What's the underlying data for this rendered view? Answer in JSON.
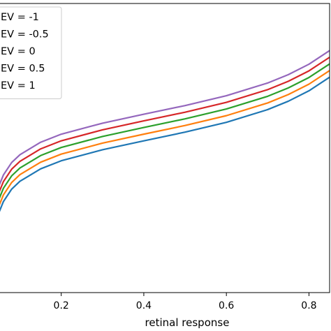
{
  "chart_data": {
    "type": "line",
    "title": "",
    "xlabel": "retinal response",
    "ylabel": "",
    "xlim": [
      0.05,
      0.85
    ],
    "ylim": [
      0,
      1
    ],
    "x_ticks": [
      0.2,
      0.4,
      0.6,
      0.8
    ],
    "x_tick_labels": [
      "0.2",
      "0.4",
      "0.6",
      "0.8"
    ],
    "grid": false,
    "legend_position": "upper-left",
    "x": [
      0.05,
      0.06,
      0.08,
      0.1,
      0.15,
      0.2,
      0.3,
      0.4,
      0.5,
      0.6,
      0.7,
      0.75,
      0.8,
      0.85
    ],
    "series": [
      {
        "name": "EV = -1",
        "color": "#1f77b4",
        "values": [
          0.28,
          0.315,
          0.358,
          0.385,
          0.428,
          0.456,
          0.494,
          0.525,
          0.555,
          0.589,
          0.633,
          0.662,
          0.698,
          0.745
        ]
      },
      {
        "name": "EV = -0.5",
        "color": "#ff7f0e",
        "values": [
          0.303,
          0.338,
          0.381,
          0.408,
          0.451,
          0.479,
          0.517,
          0.548,
          0.578,
          0.612,
          0.656,
          0.685,
          0.721,
          0.768
        ]
      },
      {
        "name": "EV = 0",
        "color": "#2ca02c",
        "values": [
          0.326,
          0.361,
          0.404,
          0.431,
          0.474,
          0.502,
          0.54,
          0.571,
          0.601,
          0.635,
          0.679,
          0.708,
          0.744,
          0.791
        ]
      },
      {
        "name": "EV = 0.5",
        "color": "#d62728",
        "values": [
          0.349,
          0.384,
          0.427,
          0.454,
          0.497,
          0.525,
          0.563,
          0.594,
          0.624,
          0.658,
          0.702,
          0.731,
          0.767,
          0.814
        ]
      },
      {
        "name": "EV = 1",
        "color": "#9467bd",
        "values": [
          0.372,
          0.407,
          0.45,
          0.477,
          0.52,
          0.548,
          0.586,
          0.617,
          0.647,
          0.681,
          0.725,
          0.754,
          0.79,
          0.837
        ]
      }
    ]
  }
}
